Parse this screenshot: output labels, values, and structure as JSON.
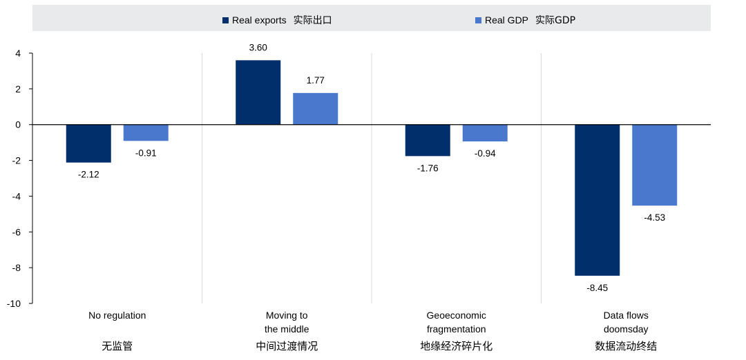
{
  "chart_data": {
    "type": "bar",
    "title": "",
    "xlabel": "",
    "ylabel": "",
    "ylim": [
      -10,
      4
    ],
    "yticks": [
      4,
      2,
      0,
      -2,
      -4,
      -6,
      -8,
      -10
    ],
    "legend_position": "top",
    "categories": [
      {
        "en": [
          "No regulation"
        ],
        "zh": "无监管"
      },
      {
        "en": [
          "Moving to",
          "the middle"
        ],
        "zh": "中间过渡情况"
      },
      {
        "en": [
          "Geoeconomic",
          "fragmentation"
        ],
        "zh": "地缘经济碎片化"
      },
      {
        "en": [
          "Data flows",
          "doomsday"
        ],
        "zh": "数据流动终结"
      }
    ],
    "series": [
      {
        "name": "Real exports",
        "name_zh": "实际出口",
        "color": "#002f6c",
        "values": [
          -2.12,
          3.6,
          -1.76,
          -8.45
        ],
        "labels": [
          "-2.12",
          "3.60",
          "-1.76",
          "-8.45"
        ]
      },
      {
        "name": "Real GDP",
        "name_zh": "实际GDP",
        "color": "#4a78cc",
        "values": [
          -0.91,
          1.77,
          -0.94,
          -4.53
        ],
        "labels": [
          "-0.91",
          "1.77",
          "-0.94",
          "-4.53"
        ]
      }
    ]
  }
}
